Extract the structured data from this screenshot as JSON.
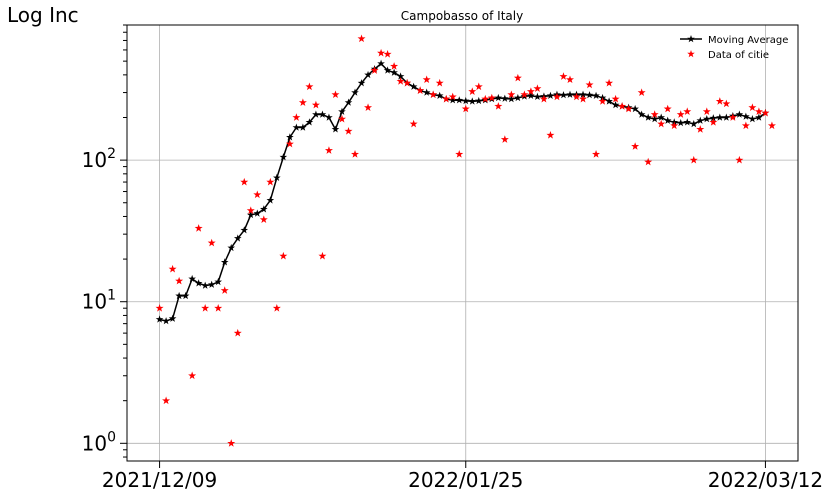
{
  "chart_data": {
    "type": "scatter",
    "title": "Campobasso of Italy",
    "ylabel": "Log Inc",
    "xlabel": "",
    "y_scale": "log",
    "ylim": [
      0.75,
      900
    ],
    "y_ticks": [
      {
        "value": 1,
        "base": "10",
        "exp": "0"
      },
      {
        "value": 10,
        "base": "10",
        "exp": "1"
      },
      {
        "value": 100,
        "base": "10",
        "exp": "2"
      }
    ],
    "x_ticks": [
      {
        "date": "2021-12-09",
        "label": "2021/12/09"
      },
      {
        "date": "2022-01-25",
        "label": "2022/01/25"
      },
      {
        "date": "2022-03-12",
        "label": "2022/03/12"
      }
    ],
    "x_range": [
      "2021-12-04",
      "2022-03-17"
    ],
    "grid": true,
    "legend_position": "top-right",
    "legend": {
      "moving_average": "Moving Average",
      "data": "Data of citie"
    },
    "colors": {
      "moving_average": "#000000",
      "data": "#ff0000"
    },
    "series": [
      {
        "name": "Moving Average",
        "marker": "star-line",
        "color": "#000000",
        "points": [
          [
            "2021-12-09",
            7.5
          ],
          [
            "2021-12-10",
            7.3
          ],
          [
            "2021-12-11",
            7.6
          ],
          [
            "2021-12-12",
            11
          ],
          [
            "2021-12-13",
            11
          ],
          [
            "2021-12-14",
            14.5
          ],
          [
            "2021-12-15",
            13.5
          ],
          [
            "2021-12-16",
            13
          ],
          [
            "2021-12-17",
            13.2
          ],
          [
            "2021-12-18",
            13.8
          ],
          [
            "2021-12-19",
            19
          ],
          [
            "2021-12-20",
            24
          ],
          [
            "2021-12-21",
            28
          ],
          [
            "2021-12-22",
            32
          ],
          [
            "2021-12-23",
            41
          ],
          [
            "2021-12-24",
            42
          ],
          [
            "2021-12-25",
            45
          ],
          [
            "2021-12-26",
            52
          ],
          [
            "2021-12-27",
            75
          ],
          [
            "2021-12-28",
            105
          ],
          [
            "2021-12-29",
            145
          ],
          [
            "2021-12-30",
            170
          ],
          [
            "2021-12-31",
            170
          ],
          [
            "2022-01-01",
            185
          ],
          [
            "2022-01-02",
            210
          ],
          [
            "2022-01-03",
            210
          ],
          [
            "2022-01-04",
            200
          ],
          [
            "2022-01-05",
            165
          ],
          [
            "2022-01-06",
            220
          ],
          [
            "2022-01-07",
            255
          ],
          [
            "2022-01-08",
            300
          ],
          [
            "2022-01-09",
            350
          ],
          [
            "2022-01-10",
            400
          ],
          [
            "2022-01-11",
            440
          ],
          [
            "2022-01-12",
            480
          ],
          [
            "2022-01-13",
            430
          ],
          [
            "2022-01-14",
            415
          ],
          [
            "2022-01-15",
            390
          ],
          [
            "2022-01-16",
            350
          ],
          [
            "2022-01-17",
            330
          ],
          [
            "2022-01-18",
            310
          ],
          [
            "2022-01-19",
            300
          ],
          [
            "2022-01-20",
            290
          ],
          [
            "2022-01-21",
            285
          ],
          [
            "2022-01-22",
            270
          ],
          [
            "2022-01-23",
            265
          ],
          [
            "2022-01-24",
            265
          ],
          [
            "2022-01-25",
            262
          ],
          [
            "2022-01-26",
            260
          ],
          [
            "2022-01-27",
            262
          ],
          [
            "2022-01-28",
            265
          ],
          [
            "2022-01-29",
            270
          ],
          [
            "2022-01-30",
            275
          ],
          [
            "2022-01-31",
            272
          ],
          [
            "2022-02-01",
            270
          ],
          [
            "2022-02-02",
            275
          ],
          [
            "2022-02-03",
            282
          ],
          [
            "2022-02-04",
            285
          ],
          [
            "2022-02-05",
            280
          ],
          [
            "2022-02-06",
            282
          ],
          [
            "2022-02-07",
            285
          ],
          [
            "2022-02-08",
            290
          ],
          [
            "2022-02-09",
            288
          ],
          [
            "2022-02-10",
            290
          ],
          [
            "2022-02-11",
            290
          ],
          [
            "2022-02-12",
            290
          ],
          [
            "2022-02-13",
            288
          ],
          [
            "2022-02-14",
            285
          ],
          [
            "2022-02-15",
            275
          ],
          [
            "2022-02-16",
            260
          ],
          [
            "2022-02-17",
            245
          ],
          [
            "2022-02-18",
            240
          ],
          [
            "2022-02-19",
            235
          ],
          [
            "2022-02-20",
            230
          ],
          [
            "2022-02-21",
            210
          ],
          [
            "2022-02-22",
            200
          ],
          [
            "2022-02-23",
            195
          ],
          [
            "2022-02-24",
            200
          ],
          [
            "2022-02-25",
            190
          ],
          [
            "2022-02-26",
            185
          ],
          [
            "2022-02-27",
            183
          ],
          [
            "2022-02-28",
            185
          ],
          [
            "2022-03-01",
            180
          ],
          [
            "2022-03-02",
            190
          ],
          [
            "2022-03-03",
            195
          ],
          [
            "2022-03-04",
            198
          ],
          [
            "2022-03-05",
            200
          ],
          [
            "2022-03-06",
            200
          ],
          [
            "2022-03-07",
            205
          ],
          [
            "2022-03-08",
            210
          ],
          [
            "2022-03-09",
            203
          ],
          [
            "2022-03-10",
            195
          ],
          [
            "2022-03-11",
            200
          ],
          [
            "2022-03-12",
            215
          ]
        ]
      },
      {
        "name": "Data of citie",
        "marker": "star",
        "color": "#ff0000",
        "points": [
          [
            "2021-12-09",
            9
          ],
          [
            "2021-12-10",
            2
          ],
          [
            "2021-12-11",
            17
          ],
          [
            "2021-12-12",
            14
          ],
          [
            "2021-12-14",
            3
          ],
          [
            "2021-12-15",
            33
          ],
          [
            "2021-12-16",
            9
          ],
          [
            "2021-12-17",
            26
          ],
          [
            "2021-12-18",
            9
          ],
          [
            "2021-12-19",
            12
          ],
          [
            "2021-12-20",
            1
          ],
          [
            "2021-12-21",
            6
          ],
          [
            "2021-12-22",
            70
          ],
          [
            "2021-12-23",
            44
          ],
          [
            "2021-12-24",
            57
          ],
          [
            "2021-12-25",
            38
          ],
          [
            "2021-12-26",
            70
          ],
          [
            "2021-12-27",
            9
          ],
          [
            "2021-12-28",
            21
          ],
          [
            "2021-12-29",
            130
          ],
          [
            "2021-12-30",
            200
          ],
          [
            "2021-12-31",
            255
          ],
          [
            "2022-01-01",
            330
          ],
          [
            "2022-01-02",
            245
          ],
          [
            "2022-01-03",
            21
          ],
          [
            "2022-01-04",
            117
          ],
          [
            "2022-01-05",
            290
          ],
          [
            "2022-01-06",
            195
          ],
          [
            "2022-01-07",
            160
          ],
          [
            "2022-01-08",
            110
          ],
          [
            "2022-01-09",
            720
          ],
          [
            "2022-01-10",
            235
          ],
          [
            "2022-01-11",
            430
          ],
          [
            "2022-01-12",
            570
          ],
          [
            "2022-01-13",
            560
          ],
          [
            "2022-01-14",
            460
          ],
          [
            "2022-01-15",
            360
          ],
          [
            "2022-01-16",
            350
          ],
          [
            "2022-01-17",
            180
          ],
          [
            "2022-01-18",
            310
          ],
          [
            "2022-01-19",
            370
          ],
          [
            "2022-01-20",
            290
          ],
          [
            "2022-01-21",
            350
          ],
          [
            "2022-01-22",
            270
          ],
          [
            "2022-01-23",
            280
          ],
          [
            "2022-01-24",
            110
          ],
          [
            "2022-01-25",
            230
          ],
          [
            "2022-01-26",
            305
          ],
          [
            "2022-01-27",
            330
          ],
          [
            "2022-01-28",
            270
          ],
          [
            "2022-01-29",
            275
          ],
          [
            "2022-01-30",
            240
          ],
          [
            "2022-01-31",
            140
          ],
          [
            "2022-02-01",
            290
          ],
          [
            "2022-02-02",
            380
          ],
          [
            "2022-02-03",
            290
          ],
          [
            "2022-02-04",
            305
          ],
          [
            "2022-02-05",
            320
          ],
          [
            "2022-02-06",
            270
          ],
          [
            "2022-02-07",
            150
          ],
          [
            "2022-02-08",
            280
          ],
          [
            "2022-02-09",
            390
          ],
          [
            "2022-02-10",
            370
          ],
          [
            "2022-02-11",
            280
          ],
          [
            "2022-02-12",
            270
          ],
          [
            "2022-02-13",
            340
          ],
          [
            "2022-02-14",
            110
          ],
          [
            "2022-02-15",
            260
          ],
          [
            "2022-02-16",
            350
          ],
          [
            "2022-02-17",
            270
          ],
          [
            "2022-02-18",
            240
          ],
          [
            "2022-02-19",
            230
          ],
          [
            "2022-02-20",
            125
          ],
          [
            "2022-02-21",
            300
          ],
          [
            "2022-02-22",
            97
          ],
          [
            "2022-02-23",
            210
          ],
          [
            "2022-02-24",
            180
          ],
          [
            "2022-02-25",
            230
          ],
          [
            "2022-02-26",
            175
          ],
          [
            "2022-02-27",
            210
          ],
          [
            "2022-02-28",
            220
          ],
          [
            "2022-03-01",
            100
          ],
          [
            "2022-03-02",
            165
          ],
          [
            "2022-03-03",
            220
          ],
          [
            "2022-03-04",
            185
          ],
          [
            "2022-03-05",
            260
          ],
          [
            "2022-03-06",
            250
          ],
          [
            "2022-03-07",
            200
          ],
          [
            "2022-03-08",
            100
          ],
          [
            "2022-03-09",
            175
          ],
          [
            "2022-03-10",
            235
          ],
          [
            "2022-03-11",
            220
          ],
          [
            "2022-03-12",
            215
          ],
          [
            "2022-03-13",
            175
          ]
        ]
      }
    ]
  }
}
